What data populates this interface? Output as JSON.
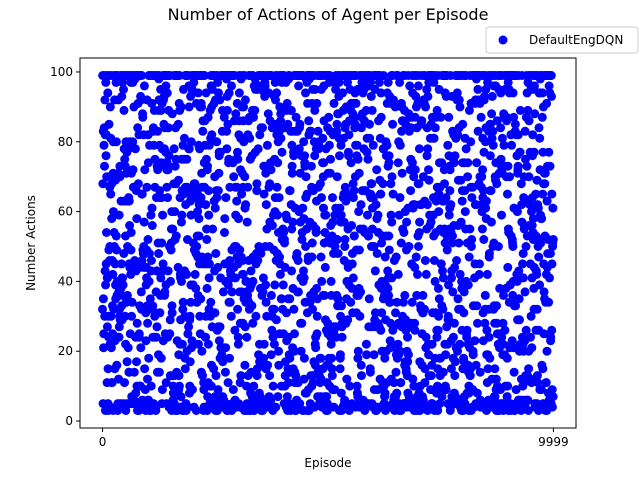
{
  "chart_data": {
    "type": "scatter",
    "title": "Number of Actions of Agent per Episode",
    "xlabel": "Episode",
    "ylabel": "Number Actions",
    "xlim": [
      -500,
      10500
    ],
    "ylim": [
      -2,
      104
    ],
    "x_ticks": [
      0,
      9999
    ],
    "x_tick_labels": [
      "0",
      "9999"
    ],
    "y_ticks": [
      0,
      20,
      40,
      60,
      80,
      100
    ],
    "y_tick_labels": [
      "0",
      "20",
      "40",
      "60",
      "80",
      "100"
    ],
    "grid": false,
    "legend": {
      "placement": "top-right",
      "entries": [
        "DefaultEngDQN"
      ]
    },
    "series": [
      {
        "name": "DefaultEngDQN",
        "color": "#0000ff",
        "marker": "circle",
        "episodes": {
          "start": 0,
          "end": 9999,
          "count": 10000
        },
        "value_range": [
          3,
          99
        ],
        "cap_value": 99,
        "floor_value": 3,
        "distribution": "dense uniform scatter between 3 and 99 with solid bands at 99 (cap) and near 3"
      }
    ]
  }
}
